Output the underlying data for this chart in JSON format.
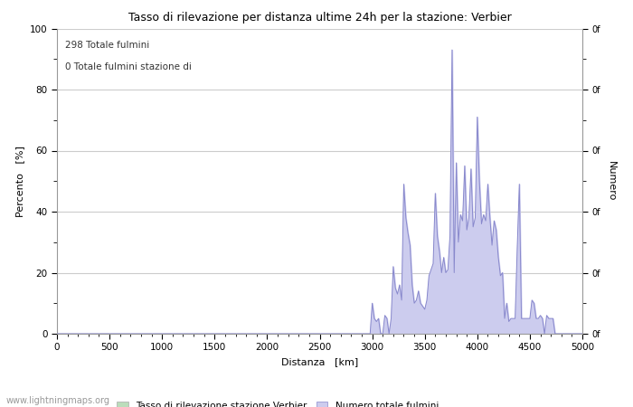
{
  "title": "Tasso di rilevazione per distanza ultime 24h per la stazione: Verbier",
  "xlabel": "Distanza   [km]",
  "ylabel_left": "Percento   [%]",
  "ylabel_right": "Numero",
  "annotation_line1": "298 Totale fulmini",
  "annotation_line2": "0 Totale fulmini stazione di",
  "xlim": [
    0,
    5000
  ],
  "ylim": [
    0,
    100
  ],
  "xticks": [
    0,
    500,
    1000,
    1500,
    2000,
    2500,
    3000,
    3500,
    4000,
    4500,
    5000
  ],
  "yticks_left": [
    0,
    20,
    40,
    60,
    80,
    100
  ],
  "legend_label_green": "Tasso di rilevazione stazione Verbier",
  "legend_label_blue": "Numero totale fulmini",
  "watermark": "www.lightningmaps.org",
  "line_color": "#8888cc",
  "fill_color": "#ccccee",
  "green_color": "#bbddbb",
  "background_color": "#ffffff",
  "grid_color": "#cccccc",
  "data_x": [
    0,
    100,
    200,
    300,
    400,
    500,
    600,
    700,
    800,
    900,
    1000,
    1100,
    1200,
    1300,
    1400,
    1500,
    1600,
    1700,
    1800,
    1900,
    2000,
    2100,
    2200,
    2300,
    2400,
    2500,
    2520,
    2540,
    2560,
    2580,
    2600,
    2620,
    2640,
    2660,
    2680,
    2700,
    2720,
    2740,
    2760,
    2780,
    2800,
    2820,
    2840,
    2860,
    2880,
    2900,
    2920,
    2940,
    2960,
    2980,
    3000,
    3020,
    3040,
    3060,
    3080,
    3100,
    3120,
    3140,
    3160,
    3180,
    3200,
    3220,
    3240,
    3260,
    3280,
    3300,
    3320,
    3340,
    3360,
    3380,
    3400,
    3420,
    3440,
    3460,
    3480,
    3500,
    3520,
    3540,
    3560,
    3580,
    3600,
    3620,
    3640,
    3660,
    3680,
    3700,
    3720,
    3740,
    3760,
    3780,
    3800,
    3820,
    3840,
    3860,
    3880,
    3900,
    3920,
    3940,
    3960,
    3980,
    4000,
    4020,
    4040,
    4060,
    4080,
    4100,
    4120,
    4140,
    4160,
    4180,
    4200,
    4220,
    4240,
    4260,
    4280,
    4300,
    4320,
    4340,
    4360,
    4380,
    4400,
    4420,
    4440,
    4460,
    4480,
    4500,
    4520,
    4540,
    4560,
    4580,
    4600,
    4620,
    4640,
    4660,
    4680,
    4700,
    4720,
    4740,
    4760,
    4780,
    4800,
    4820,
    4840,
    4860,
    4880,
    4900,
    4920,
    4940,
    4960,
    4980,
    5000
  ],
  "data_y": [
    0,
    0,
    0,
    0,
    0,
    0,
    0,
    0,
    0,
    0,
    0,
    0,
    0,
    0,
    0,
    0,
    0,
    0,
    0,
    0,
    0,
    0,
    0,
    0,
    0,
    0,
    0,
    0,
    0,
    0,
    0,
    0,
    0,
    0,
    0,
    0,
    0,
    0,
    0,
    0,
    0,
    0,
    0,
    0,
    0,
    0,
    0,
    0,
    0,
    0,
    10,
    5,
    4,
    5,
    0,
    0,
    6,
    5,
    0,
    5,
    22,
    15,
    13,
    16,
    11,
    49,
    38,
    33,
    29,
    16,
    10,
    11,
    14,
    10,
    9,
    8,
    11,
    19,
    21,
    23,
    46,
    32,
    27,
    20,
    25,
    20,
    21,
    32,
    93,
    20,
    56,
    30,
    39,
    37,
    55,
    34,
    38,
    54,
    35,
    38,
    71,
    50,
    36,
    39,
    37,
    49,
    38,
    29,
    37,
    34,
    25,
    19,
    20,
    5,
    10,
    4,
    5,
    5,
    5,
    28,
    49,
    5,
    5,
    5,
    5,
    5,
    11,
    10,
    5,
    5,
    6,
    5,
    0,
    6,
    5,
    5,
    5,
    0,
    0,
    0,
    0,
    0,
    0,
    0,
    0,
    0,
    0,
    0,
    0,
    0,
    0
  ]
}
